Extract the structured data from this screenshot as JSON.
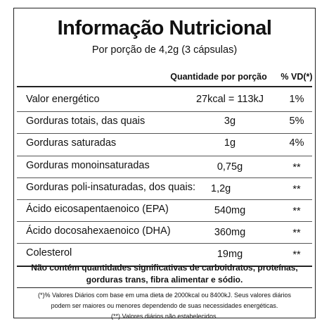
{
  "header": {
    "title": "Informação Nutricional",
    "subtitle": "Por porção de 4,2g (3 cápsulas)"
  },
  "table": {
    "columns": [
      "Quantidade por porção",
      "% VD(*)"
    ],
    "rows": [
      [
        "Valor energético",
        "27kcal = 113kJ",
        "1%"
      ],
      [
        "Gorduras totais, das quais",
        "3g",
        "5%"
      ],
      [
        "Gorduras saturadas",
        "1g",
        "4%"
      ],
      [
        "Gorduras monoinsaturadas",
        "0,75g",
        "**"
      ],
      [
        "Gorduras poli-insaturadas, dos quais:",
        "1,2g",
        "**"
      ],
      [
        "Ácido eicosapentaenoico (EPA)",
        "540mg",
        "**"
      ],
      [
        "Ácido docosahexaenoico (DHA)",
        "360mg",
        "**"
      ],
      [
        "Colesterol",
        "19mg",
        "**"
      ]
    ]
  },
  "footer": {
    "note": [
      "Não contém quantidades significativas de carboidratos, proteínas,",
      "gorduras trans, fibra alimentar e sódio."
    ],
    "footnotes": [
      "(*)% Valores Diários com base em uma dieta de 2000kcal ou 8400kJ. Seus valores diários",
      "podem ser maiores ou menores dependendo de suas necessidades energéticas.",
      "(**) Valores diários não estabelecidos."
    ]
  }
}
